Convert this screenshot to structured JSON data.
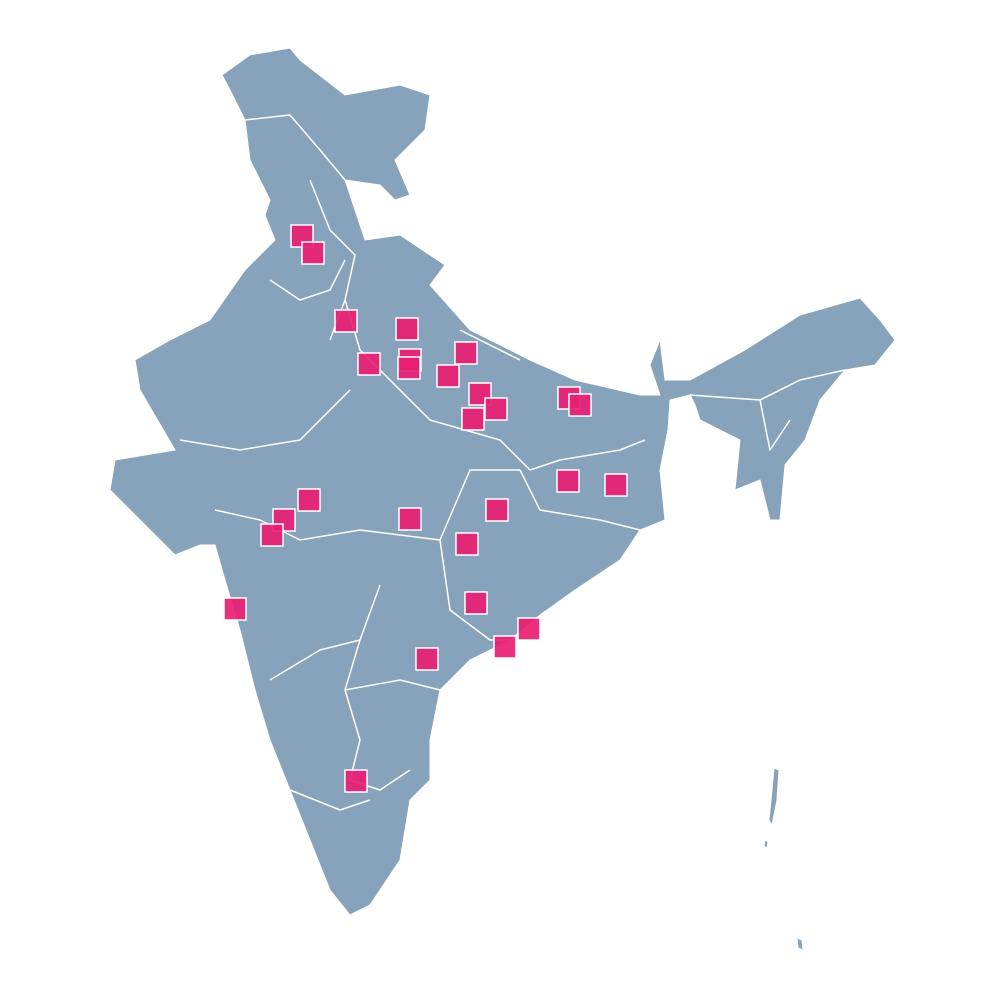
{
  "map": {
    "region": "India",
    "land_color": "#87a3bb",
    "border_color": "#ffffff",
    "marker_color": "#e91e73",
    "marker_shape": "square",
    "marker_count": 28
  }
}
